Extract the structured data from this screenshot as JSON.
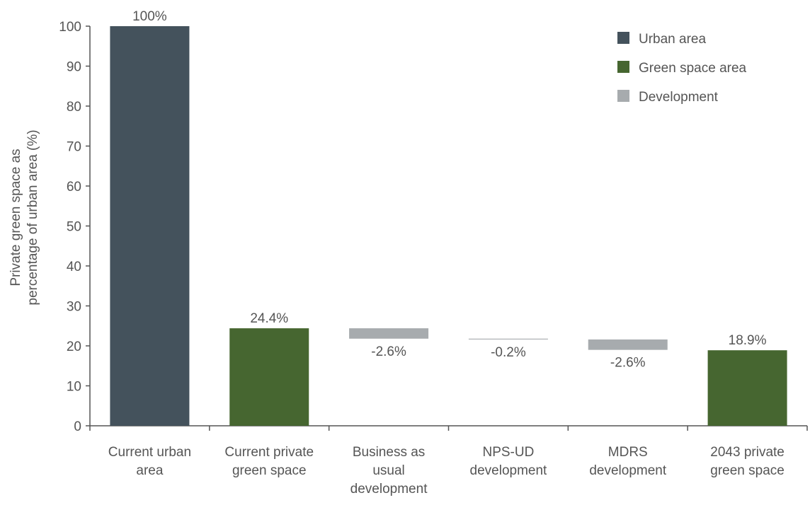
{
  "chart_data": {
    "type": "waterfall",
    "y_label": "Private green space as percentage of urban area (%)",
    "categories": [
      "Current urban area",
      "Current private green space",
      "Business as usual development",
      "NPS-UD development",
      "MDRS development",
      "2043 private green space"
    ],
    "values": [
      100,
      24.4,
      -2.6,
      -0.2,
      -2.6,
      18.9
    ],
    "value_labels": [
      "100%",
      "24.4%",
      "-2.6%",
      "-0.2%",
      "-2.6%",
      "18.9%"
    ],
    "measure": [
      "absolute",
      "absolute",
      "relative",
      "relative",
      "relative",
      "absolute"
    ],
    "colors": [
      "#44525c",
      "#466630",
      "#a7abae",
      "#a7abae",
      "#a7abae",
      "#466630"
    ],
    "legend": [
      {
        "name": "Urban area",
        "color": "#44525c"
      },
      {
        "name": "Green space area",
        "color": "#466630"
      },
      {
        "name": "Development",
        "color": "#a7abae"
      }
    ],
    "legend_position": "upper right",
    "ylim": [
      0,
      100
    ],
    "yticks": [
      0,
      10,
      20,
      30,
      40,
      50,
      60,
      70,
      80,
      90,
      100
    ]
  }
}
